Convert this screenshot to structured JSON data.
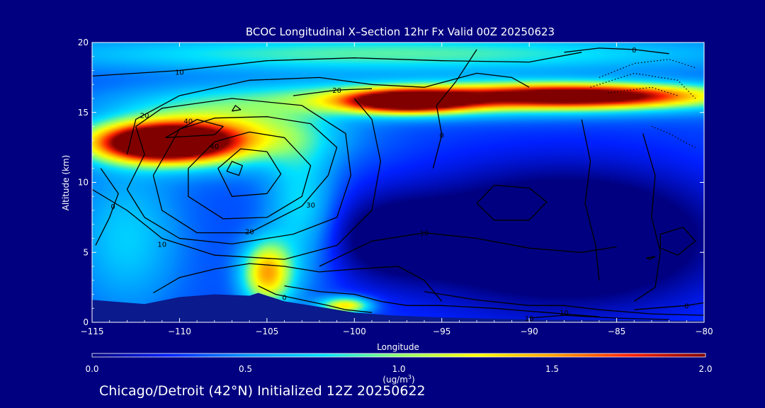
{
  "footer": "Chicago/Detroit (42°N) Initialized 12Z 20250622",
  "colors": {
    "background": "#000080",
    "terrain": "#0b1a8c",
    "contour": "#000000",
    "text": "#ffffff"
  },
  "chart_data": {
    "type": "heatmap",
    "title": "BCOC Longitudinal X–Section 12hr  Fx Valid 00Z 20250623",
    "xlabel": "Longitude",
    "ylabel": "Altitude (km)",
    "xlim": [
      -115,
      -80
    ],
    "ylim": [
      0,
      20
    ],
    "xticks": [
      -115,
      -110,
      -105,
      -100,
      -95,
      -90,
      -85,
      -80
    ],
    "xtick_labels": [
      "−115",
      "−110",
      "−105",
      "−100",
      "−95",
      "−90",
      "−85",
      "−80"
    ],
    "yticks": [
      0,
      5,
      10,
      15,
      20
    ],
    "ytick_labels": [
      "0",
      "5",
      "10",
      "15",
      "20"
    ],
    "grid": false,
    "colorbar": {
      "min": 0.0,
      "max": 2.0,
      "ticks": [
        0.0,
        0.5,
        1.0,
        1.5,
        2.0
      ],
      "tick_labels": [
        "0.0",
        "0.5",
        "1.0",
        "1.5",
        "2.0"
      ],
      "unit_label": "(ug/m",
      "unit_exponent": "3",
      "unit_close": ")",
      "colormap": [
        "#000080",
        "#0020ff",
        "#0090ff",
        "#00e0ff",
        "#90ff70",
        "#ffff00",
        "#ffa000",
        "#ff2000",
        "#800000"
      ]
    },
    "fields": {
      "background_value": 0.35,
      "features": [
        {
          "name": "upper-layer-west",
          "lon": -111,
          "alt": 12.8,
          "lon_width": 3.8,
          "alt_width": 1.3,
          "value": 2.2
        },
        {
          "name": "upper-layer-west-halo",
          "lon": -108,
          "alt": 13.5,
          "lon_width": 6,
          "alt_width": 2.2,
          "value": 0.9
        },
        {
          "name": "upper-layer-mid",
          "lon": -97,
          "alt": 15.8,
          "lon_width": 3.5,
          "alt_width": 0.8,
          "value": 1.8
        },
        {
          "name": "upper-layer-east",
          "lon": -87,
          "alt": 16.2,
          "lon_width": 7,
          "alt_width": 0.8,
          "value": 1.5
        },
        {
          "name": "upper-layer-band",
          "lon": -93,
          "alt": 16.0,
          "lon_width": 14,
          "alt_width": 1.2,
          "value": 0.8
        },
        {
          "name": "high-cloud-top",
          "lon": -98,
          "alt": 19.2,
          "lon_width": 20,
          "alt_width": 1.3,
          "value": 0.55
        },
        {
          "name": "convective-plume",
          "lon": -105,
          "alt": 3.5,
          "lon_width": 1.4,
          "alt_width": 2.2,
          "value": 1.1
        },
        {
          "name": "plume-column",
          "lon": -103,
          "alt": 8,
          "lon_width": 2,
          "alt_width": 5,
          "value": 0.45
        },
        {
          "name": "surface-patch",
          "lon": -100.5,
          "alt": 1.2,
          "lon_width": 1.4,
          "alt_width": 0.6,
          "value": 1.0
        },
        {
          "name": "western-bg",
          "lon": -113,
          "alt": 6,
          "lon_width": 3,
          "alt_width": 5,
          "value": 0.35
        },
        {
          "name": "clean-east",
          "lon": -88,
          "alt": 6,
          "lon_width": 9,
          "alt_width": 5,
          "value": -0.7
        },
        {
          "name": "clean-mid",
          "lon": -98,
          "alt": 6,
          "lon_width": 4,
          "alt_width": 3,
          "value": -0.35
        }
      ]
    },
    "terrain": [
      {
        "lon": -115,
        "alt": 1.6
      },
      {
        "lon": -112,
        "alt": 1.3
      },
      {
        "lon": -110,
        "alt": 1.8
      },
      {
        "lon": -108,
        "alt": 2.0
      },
      {
        "lon": -106,
        "alt": 1.9
      },
      {
        "lon": -105.5,
        "alt": 2.1
      },
      {
        "lon": -104,
        "alt": 1.5
      },
      {
        "lon": -102,
        "alt": 1.1
      },
      {
        "lon": -100,
        "alt": 0.7
      },
      {
        "lon": -98,
        "alt": 0.5
      },
      {
        "lon": -95,
        "alt": 0.35
      },
      {
        "lon": -90,
        "alt": 0.2
      },
      {
        "lon": -85,
        "alt": 0.15
      },
      {
        "lon": -80,
        "alt": 0.1
      }
    ],
    "contours": [
      {
        "label": "10",
        "label_lon": -110,
        "label_alt": 17.9,
        "points": [
          [
            -115,
            17.6
          ],
          [
            -110,
            18.0
          ],
          [
            -105,
            18.7
          ],
          [
            -100,
            18.9
          ],
          [
            -95,
            18.7
          ],
          [
            -90,
            18.6
          ],
          [
            -87,
            19.3
          ]
        ]
      },
      {
        "label": "20",
        "label_lon": -112,
        "label_alt": 14.8,
        "points": [
          [
            -113,
            12.0
          ],
          [
            -112.5,
            14.5
          ],
          [
            -110,
            16.2
          ],
          [
            -106,
            17.3
          ],
          [
            -102,
            17.5
          ],
          [
            -99,
            17.0
          ],
          [
            -96,
            16.8
          ],
          [
            -93,
            17.8
          ],
          [
            -91,
            17.5
          ],
          [
            -90,
            16.8
          ]
        ]
      },
      {
        "label": "20",
        "label_lon": -101,
        "label_alt": 16.6,
        "points": [
          [
            -103.5,
            16.2
          ],
          [
            -101,
            16.6
          ],
          [
            -99,
            16.7
          ]
        ]
      },
      {
        "label": "",
        "label_lon": null,
        "label_alt": null,
        "points": [
          [
            -111.5,
            10.5
          ],
          [
            -110,
            13.8
          ],
          [
            -108,
            14.6
          ],
          [
            -105,
            14.7
          ],
          [
            -102.5,
            14.2
          ],
          [
            -101,
            12.5
          ],
          [
            -101.5,
            10.5
          ],
          [
            -103,
            8.3
          ],
          [
            -106,
            6.4
          ],
          [
            -109,
            6.4
          ],
          [
            -111,
            8.0
          ],
          [
            -111.5,
            10.5
          ]
        ]
      },
      {
        "label": "30",
        "label_lon": -102.5,
        "label_alt": 8.4,
        "points": [
          [
            -109.5,
            11.0
          ],
          [
            -108,
            12.9
          ],
          [
            -106,
            13.6
          ],
          [
            -104,
            13.2
          ],
          [
            -102.5,
            11.2
          ],
          [
            -103,
            9.0
          ],
          [
            -105,
            7.5
          ],
          [
            -107.5,
            7.4
          ],
          [
            -109.5,
            9.0
          ],
          [
            -109.5,
            11.0
          ]
        ]
      },
      {
        "label": "40",
        "label_lon": -108,
        "label_alt": 12.6,
        "points": [
          [
            -107.8,
            11.0
          ],
          [
            -106.5,
            12.4
          ],
          [
            -105,
            12.2
          ],
          [
            -104.2,
            10.6
          ],
          [
            -105,
            9.2
          ],
          [
            -107,
            9.0
          ],
          [
            -107.8,
            11.0
          ]
        ]
      },
      {
        "label": "40",
        "label_lon": -109.5,
        "label_alt": 14.4,
        "points": [
          [
            -110.8,
            13.2
          ],
          [
            -109,
            14.5
          ],
          [
            -107.5,
            14.0
          ],
          [
            -108,
            13.4
          ],
          [
            -110.8,
            13.2
          ]
        ]
      },
      {
        "label": "",
        "label_lon": null,
        "label_alt": null,
        "points": [
          [
            -107.3,
            10.8
          ],
          [
            -107,
            11.5
          ],
          [
            -106.4,
            11.2
          ],
          [
            -106.6,
            10.5
          ],
          [
            -107.3,
            10.8
          ]
        ]
      },
      {
        "label": "20",
        "label_lon": -106,
        "label_alt": 6.5,
        "points": [
          [
            -113,
            9.5
          ],
          [
            -112,
            12.0
          ],
          [
            -112.5,
            14.0
          ],
          [
            -111,
            15.3
          ],
          [
            -107,
            16.0
          ],
          [
            -103,
            15.5
          ],
          [
            -100.5,
            13.5
          ],
          [
            -100.2,
            10.5
          ],
          [
            -101,
            7.5
          ],
          [
            -103.5,
            6.3
          ],
          [
            -107,
            5.6
          ],
          [
            -110,
            6.0
          ],
          [
            -112,
            7.5
          ],
          [
            -113,
            9.5
          ]
        ]
      },
      {
        "label": "10",
        "label_lon": -111,
        "label_alt": 5.6,
        "points": [
          [
            -115,
            9.5
          ],
          [
            -113,
            8.0
          ],
          [
            -111,
            6.0
          ],
          [
            -108,
            4.8
          ],
          [
            -104,
            4.5
          ],
          [
            -101,
            5.5
          ],
          [
            -99,
            8.0
          ],
          [
            -98.5,
            11.5
          ],
          [
            -99,
            14.5
          ],
          [
            -100,
            16.0
          ]
        ]
      },
      {
        "label": "10",
        "label_lon": -96,
        "label_alt": 6.4,
        "points": [
          [
            -102,
            4.0
          ],
          [
            -99,
            5.8
          ],
          [
            -96,
            6.4
          ],
          [
            -93,
            6.0
          ],
          [
            -90,
            5.3
          ],
          [
            -87,
            5.0
          ],
          [
            -85,
            5.4
          ]
        ]
      },
      {
        "label": "0",
        "label_lon": -113.8,
        "label_alt": 8.3,
        "points": [
          [
            -114.8,
            5.5
          ],
          [
            -114,
            7.5
          ],
          [
            -113.5,
            9.2
          ],
          [
            -114.5,
            11.0
          ]
        ]
      },
      {
        "label": "0",
        "label_lon": -95,
        "label_alt": 13.4,
        "points": [
          [
            -95.5,
            11.0
          ],
          [
            -95,
            13.4
          ],
          [
            -95.3,
            15.5
          ],
          [
            -94.2,
            17.2
          ],
          [
            -93,
            19.5
          ]
        ]
      },
      {
        "label": "0",
        "label_lon": -84,
        "label_alt": 19.5,
        "points": [
          [
            -88,
            19.3
          ],
          [
            -86,
            19.6
          ],
          [
            -84,
            19.5
          ],
          [
            -82,
            19.2
          ]
        ]
      },
      {
        "label": "",
        "label_lon": null,
        "label_alt": null,
        "points": [
          [
            -93,
            8.5
          ],
          [
            -92,
            9.8
          ],
          [
            -90,
            9.6
          ],
          [
            -89,
            8.6
          ],
          [
            -90,
            7.3
          ],
          [
            -92,
            7.3
          ],
          [
            -93,
            8.5
          ]
        ]
      },
      {
        "label": "",
        "label_lon": null,
        "label_alt": null,
        "points": [
          [
            -87,
            14.5
          ],
          [
            -86.5,
            11.5
          ],
          [
            -86.8,
            8.5
          ],
          [
            -86.2,
            5.5
          ],
          [
            -86,
            3.0
          ]
        ]
      },
      {
        "label": "",
        "label_lon": null,
        "label_alt": null,
        "points": [
          [
            -82.5,
            6.3
          ],
          [
            -81.2,
            6.8
          ],
          [
            -80.5,
            5.8
          ],
          [
            -81.5,
            4.8
          ],
          [
            -82.5,
            5.3
          ],
          [
            -82.5,
            6.3
          ]
        ]
      },
      {
        "label": "",
        "label_lon": null,
        "label_alt": null,
        "points": [
          [
            -83.5,
            13.5
          ],
          [
            -82.8,
            10.5
          ],
          [
            -83,
            7.5
          ],
          [
            -82.5,
            5.0
          ],
          [
            -82.8,
            2.5
          ],
          [
            -84,
            1.5
          ]
        ]
      },
      {
        "label": "",
        "label_lon": null,
        "label_alt": null,
        "points": [
          [
            -111.5,
            2.1
          ],
          [
            -110,
            3.2
          ],
          [
            -108,
            3.8
          ],
          [
            -106,
            4.2
          ],
          [
            -104,
            4.0
          ],
          [
            -102,
            3.6
          ],
          [
            -100,
            3.8
          ],
          [
            -97.5,
            4.0
          ],
          [
            -96,
            3.0
          ],
          [
            -95,
            1.5
          ]
        ]
      },
      {
        "label": "0",
        "label_lon": -104,
        "label_alt": 1.8,
        "points": [
          [
            -105.5,
            2.6
          ],
          [
            -104.5,
            2.0
          ],
          [
            -103,
            1.6
          ],
          [
            -101.5,
            1.2
          ],
          [
            -100.5,
            0.9
          ],
          [
            -99,
            0.7
          ]
        ]
      },
      {
        "label": "",
        "label_lon": null,
        "label_alt": null,
        "points": [
          [
            -104,
            2.6
          ],
          [
            -102,
            2.2
          ],
          [
            -100,
            2.0
          ],
          [
            -98.5,
            1.5
          ],
          [
            -97,
            1.2
          ],
          [
            -95,
            1.2
          ],
          [
            -92,
            1.0
          ],
          [
            -89,
            0.7
          ],
          [
            -86,
            0.4
          ]
        ]
      },
      {
        "label": "10",
        "label_lon": -90,
        "label_alt": 0.3,
        "points": [
          [
            -96,
            2.2
          ],
          [
            -93,
            1.6
          ],
          [
            -90,
            1.2
          ],
          [
            -88,
            1.2
          ],
          [
            -86,
            0.9
          ],
          [
            -83,
            0.6
          ],
          [
            -80,
            0.5
          ]
        ]
      },
      {
        "label": "10",
        "label_lon": -88,
        "label_alt": 0.7,
        "points": [
          [
            -90,
            0.3
          ],
          [
            -88,
            0.5
          ],
          [
            -85,
            0.3
          ],
          [
            -82,
            0.2
          ]
        ]
      },
      {
        "label": "0",
        "label_lon": -81,
        "label_alt": 1.2,
        "points": [
          [
            -84,
            0.9
          ],
          [
            -81,
            1.2
          ],
          [
            -80,
            1.4
          ]
        ]
      },
      {
        "label": "",
        "label_lon": null,
        "label_alt": null,
        "points": [
          [
            -107,
            15.1
          ],
          [
            -106.8,
            15.5
          ],
          [
            -106.5,
            15.2
          ],
          [
            -107,
            15.1
          ]
        ]
      },
      {
        "label": "",
        "label_lon": null,
        "label_alt": null,
        "points": [
          [
            -83.3,
            4.6
          ],
          [
            -82.8,
            4.7
          ],
          [
            -83.1,
            4.5
          ],
          [
            -83.3,
            4.6
          ]
        ]
      }
    ],
    "dotted_contours": [
      {
        "points": [
          [
            -86,
            17.5
          ],
          [
            -84,
            18.5
          ],
          [
            -82,
            18.8
          ],
          [
            -80.5,
            18.2
          ]
        ]
      },
      {
        "points": [
          [
            -86.5,
            16.8
          ],
          [
            -84,
            17.8
          ],
          [
            -81.5,
            17.3
          ],
          [
            -80.5,
            16.0
          ]
        ]
      },
      {
        "points": [
          [
            -85.5,
            16.4
          ],
          [
            -83,
            16.8
          ],
          [
            -81.5,
            16.2
          ]
        ]
      },
      {
        "points": [
          [
            -83,
            14.0
          ],
          [
            -82,
            13.5
          ],
          [
            -81,
            12.8
          ],
          [
            -80.5,
            12.5
          ]
        ]
      }
    ]
  }
}
